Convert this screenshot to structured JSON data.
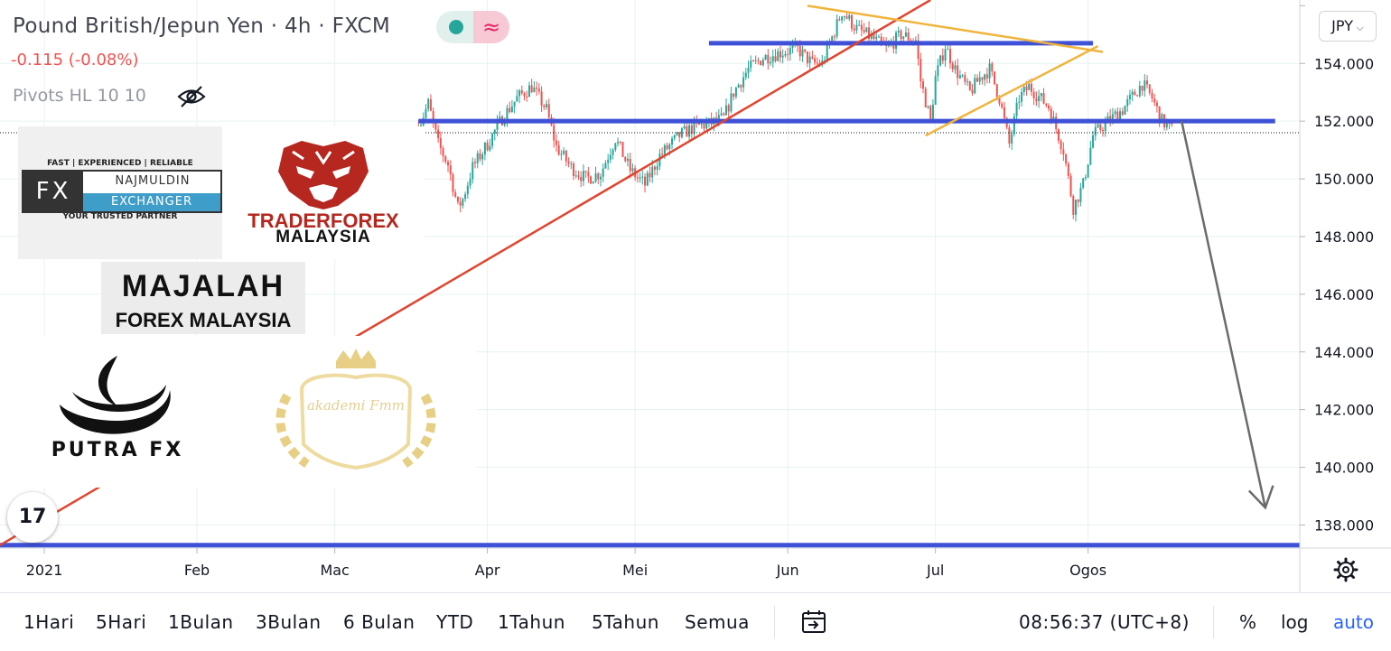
{
  "header": {
    "title": "Pound British/Jepun Yen · 4h · FXCM",
    "change": "-0.115 (-0.08%)",
    "indicator": "Pivots HL 10 10",
    "currency_button": "JPY"
  },
  "logos": {
    "najmuldin": {
      "tagline": "FAST | EXPERIENCED | RELIABLE",
      "fx": "FX",
      "name1": "NAJMULDIN",
      "name2": "EXCHANGER",
      "footer": "YOUR TRUSTED PARTNER"
    },
    "traderforex": {
      "line1": "TRADERFOREX",
      "line2": "MALAYSIA"
    },
    "majalah": {
      "line1": "MAJALAH",
      "line2": "FOREX MALAYSIA"
    },
    "putra": {
      "name": "PUTRA FX"
    },
    "akademi": {
      "name": "akademi Fmm"
    },
    "tradingview": "17"
  },
  "chart_data": {
    "type": "line",
    "subtype": "candlestick price chart",
    "symbol": "GBPJPY",
    "interval": "4h",
    "y_axis": {
      "ticks": [
        "154.000",
        "152.000",
        "150.000",
        "148.000",
        "146.000",
        "144.000",
        "142.000",
        "140.000",
        "138.000"
      ],
      "tick_values": [
        154,
        152,
        150,
        148,
        146,
        144,
        142,
        140,
        138
      ],
      "range": [
        137.2,
        156.2
      ]
    },
    "x_axis": {
      "ticks": [
        "2021",
        "Feb",
        "Mac",
        "Apr",
        "Mei",
        "Jun",
        "Jul",
        "Ogos"
      ],
      "tick_dates": [
        "2021-01-01",
        "2021-02-01",
        "2021-03-01",
        "2021-04-01",
        "2021-05-01",
        "2021-06-01",
        "2021-07-01",
        "2021-08-01"
      ],
      "range": [
        "2020-12-23",
        "2021-09-13"
      ]
    },
    "series": [
      {
        "values": [
          [
            "2021-03-18",
            151.8
          ],
          [
            "2021-03-20",
            152.6
          ],
          [
            "2021-03-22",
            151.2
          ],
          [
            "2021-03-24",
            150.5
          ],
          [
            "2021-03-26",
            149.0
          ],
          [
            "2021-03-27",
            149.3
          ],
          [
            "2021-03-29",
            150.4
          ],
          [
            "2021-04-01",
            151.2
          ],
          [
            "2021-04-04",
            152.1
          ],
          [
            "2021-04-07",
            152.8
          ],
          [
            "2021-04-10",
            153.2
          ],
          [
            "2021-04-13",
            152.4
          ],
          [
            "2021-04-15",
            151.1
          ],
          [
            "2021-04-18",
            150.4
          ],
          [
            "2021-04-21",
            150.0
          ],
          [
            "2021-04-24",
            150.2
          ],
          [
            "2021-04-27",
            151.4
          ],
          [
            "2021-04-30",
            150.3
          ],
          [
            "2021-05-03",
            149.8
          ],
          [
            "2021-05-06",
            150.8
          ],
          [
            "2021-05-10",
            151.5
          ],
          [
            "2021-05-13",
            151.8
          ],
          [
            "2021-05-16",
            151.9
          ],
          [
            "2021-05-19",
            152.1
          ],
          [
            "2021-05-21",
            153.0
          ],
          [
            "2021-05-24",
            153.8
          ],
          [
            "2021-05-27",
            154.2
          ],
          [
            "2021-05-31",
            154.4
          ],
          [
            "2021-06-03",
            154.5
          ],
          [
            "2021-06-06",
            154.0
          ],
          [
            "2021-06-08",
            154.0
          ],
          [
            "2021-06-12",
            155.8
          ],
          [
            "2021-06-15",
            155.2
          ],
          [
            "2021-06-18",
            154.9
          ],
          [
            "2021-06-21",
            154.5
          ],
          [
            "2021-06-24",
            155.0
          ],
          [
            "2021-06-27",
            154.8
          ],
          [
            "2021-06-28",
            153.4
          ],
          [
            "2021-06-30",
            152.0
          ],
          [
            "2021-07-01",
            153.5
          ],
          [
            "2021-07-03",
            154.6
          ],
          [
            "2021-07-05",
            153.8
          ],
          [
            "2021-07-08",
            153.0
          ],
          [
            "2021-07-10",
            153.5
          ],
          [
            "2021-07-12",
            153.8
          ],
          [
            "2021-07-14",
            152.8
          ],
          [
            "2021-07-16",
            151.2
          ],
          [
            "2021-07-18",
            152.8
          ],
          [
            "2021-07-20",
            153.2
          ],
          [
            "2021-07-24",
            152.5
          ],
          [
            "2021-07-27",
            151.0
          ],
          [
            "2021-07-29",
            149.0
          ],
          [
            "2021-07-31",
            149.8
          ],
          [
            "2021-08-02",
            151.5
          ],
          [
            "2021-08-05",
            152.0
          ],
          [
            "2021-08-08",
            152.4
          ],
          [
            "2021-08-12",
            153.3
          ],
          [
            "2021-08-14",
            152.8
          ],
          [
            "2021-08-16",
            152.0
          ],
          [
            "2021-08-18",
            151.7
          ]
        ]
      }
    ],
    "annotations": [
      {
        "type": "horizontal-line",
        "color": "#3f51d6",
        "price": 152.0,
        "from": "2021-03-18",
        "to": "2021-09-08"
      },
      {
        "type": "horizontal-line",
        "color": "#3f51d6",
        "price": 154.7,
        "from": "2021-05-16",
        "to": "2021-08-02"
      },
      {
        "type": "horizontal-line",
        "color": "#3f51d6",
        "price": 137.3,
        "from": "2020-12-23",
        "to": "2021-09-13"
      },
      {
        "type": "trendline",
        "color": "#e0452f",
        "from": [
          "2020-12-23",
          137.3
        ],
        "to": [
          "2021-06-30",
          156.2
        ]
      },
      {
        "type": "trendline",
        "color": "#f0b43c",
        "from": [
          "2021-06-05",
          156.0
        ],
        "to": [
          "2021-08-04",
          154.4
        ]
      },
      {
        "type": "trendline",
        "color": "#f0b43c",
        "from": [
          "2021-06-29",
          151.5
        ],
        "to": [
          "2021-08-03",
          154.6
        ]
      },
      {
        "type": "arrow",
        "color": "#6b6b6b",
        "from": [
          "2021-08-20",
          152.0
        ],
        "to": [
          "2021-09-06",
          138.6
        ]
      }
    ],
    "last_price_line": 151.6,
    "colors": {
      "up": "#26a69a",
      "down": "#ef5350",
      "grid": "#e6f2f2"
    },
    "grid": true,
    "legend": "none"
  },
  "bottom_toolbar": {
    "ranges": [
      "1Hari",
      "5Hari",
      "1Bulan",
      "3Bulan",
      "6 Bulan",
      "YTD",
      "1Tahun",
      "5Tahun",
      "Semua"
    ],
    "clock": "08:56:37 (UTC+8)",
    "percent": "%",
    "log": "log",
    "auto": "auto"
  }
}
